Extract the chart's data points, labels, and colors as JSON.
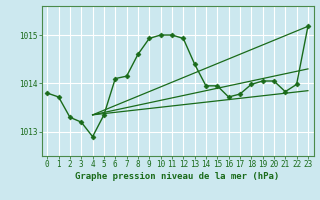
{
  "background_color": "#cce8ef",
  "grid_color": "#ffffff",
  "line_color": "#1a6b1a",
  "title": "Graphe pression niveau de la mer (hPa)",
  "xlim": [
    -0.5,
    23.5
  ],
  "ylim": [
    1012.5,
    1015.6
  ],
  "yticks": [
    1013,
    1014,
    1015
  ],
  "xticks": [
    0,
    1,
    2,
    3,
    4,
    5,
    6,
    7,
    8,
    9,
    10,
    11,
    12,
    13,
    14,
    15,
    16,
    17,
    18,
    19,
    20,
    21,
    22,
    23
  ],
  "series": [
    {
      "x": [
        0,
        1,
        2,
        3,
        4,
        5,
        6,
        7,
        8,
        9,
        10,
        11,
        12,
        13,
        14,
        15,
        16,
        17,
        18,
        19,
        20,
        21,
        22,
        23
      ],
      "y": [
        1013.8,
        1013.72,
        1013.3,
        1013.2,
        1012.9,
        1013.35,
        1014.1,
        1014.15,
        1014.6,
        1014.93,
        1015.0,
        1015.0,
        1014.93,
        1014.4,
        1013.95,
        1013.95,
        1013.72,
        1013.78,
        1013.98,
        1014.05,
        1014.05,
        1013.83,
        1013.98,
        1015.18
      ],
      "marker": "D",
      "markersize": 2.5,
      "linewidth": 1.0,
      "zorder": 3
    },
    {
      "x": [
        4,
        23
      ],
      "y": [
        1013.35,
        1015.18
      ],
      "marker": null,
      "markersize": 0,
      "linewidth": 0.9,
      "zorder": 2
    },
    {
      "x": [
        4,
        23
      ],
      "y": [
        1013.35,
        1014.3
      ],
      "marker": null,
      "markersize": 0,
      "linewidth": 0.9,
      "zorder": 2
    },
    {
      "x": [
        4,
        23
      ],
      "y": [
        1013.35,
        1013.85
      ],
      "marker": null,
      "markersize": 0,
      "linewidth": 0.9,
      "zorder": 2
    }
  ],
  "title_fontsize": 6.5,
  "tick_fontsize": 5.5,
  "title_color": "#1a6b1a",
  "tick_color": "#1a6b1a",
  "spine_color": "#4a8a4a"
}
